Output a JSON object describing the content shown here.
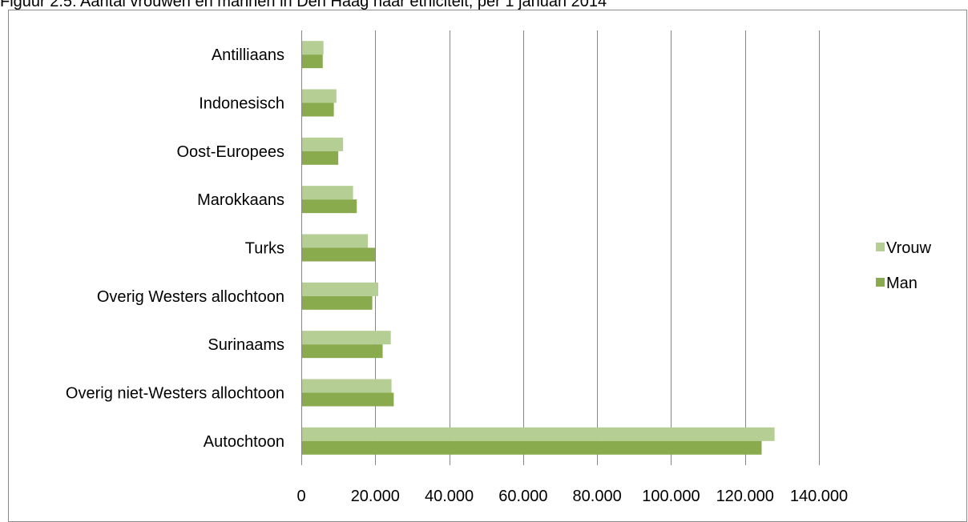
{
  "caption": "Figuur 2.5: Aantal vrouwen en mannen in Den Haag naar etniciteit, per 1 januari 2014",
  "colors": {
    "vrouw": "#b5ce93",
    "man": "#8aaa4e",
    "grid": "#868686",
    "axis": "#868686"
  },
  "chart_data": {
    "type": "bar",
    "orientation": "horizontal",
    "categories": [
      "Antilliaans",
      "Indonesisch",
      "Oost-Europees",
      "Marokkaans",
      "Turks",
      "Overig Westers allochtoon",
      "Surinaams",
      "Overig niet-Westers allochtoon",
      "Autochtoon"
    ],
    "series": [
      {
        "name": "Vrouw",
        "values": [
          6000,
          9500,
          11300,
          14000,
          18000,
          20800,
          24200,
          24400,
          128000
        ]
      },
      {
        "name": "Man",
        "values": [
          5800,
          8800,
          10000,
          15000,
          20000,
          19200,
          22000,
          25000,
          124500
        ]
      }
    ],
    "xlim": [
      0,
      140000
    ],
    "xticks": [
      0,
      20000,
      40000,
      60000,
      80000,
      100000,
      120000,
      140000
    ],
    "xtick_labels": [
      "0",
      "20.000",
      "40.000",
      "60.000",
      "80.000",
      "100.000",
      "120.000",
      "140.000"
    ],
    "grid": "vertical",
    "legend": "right"
  }
}
